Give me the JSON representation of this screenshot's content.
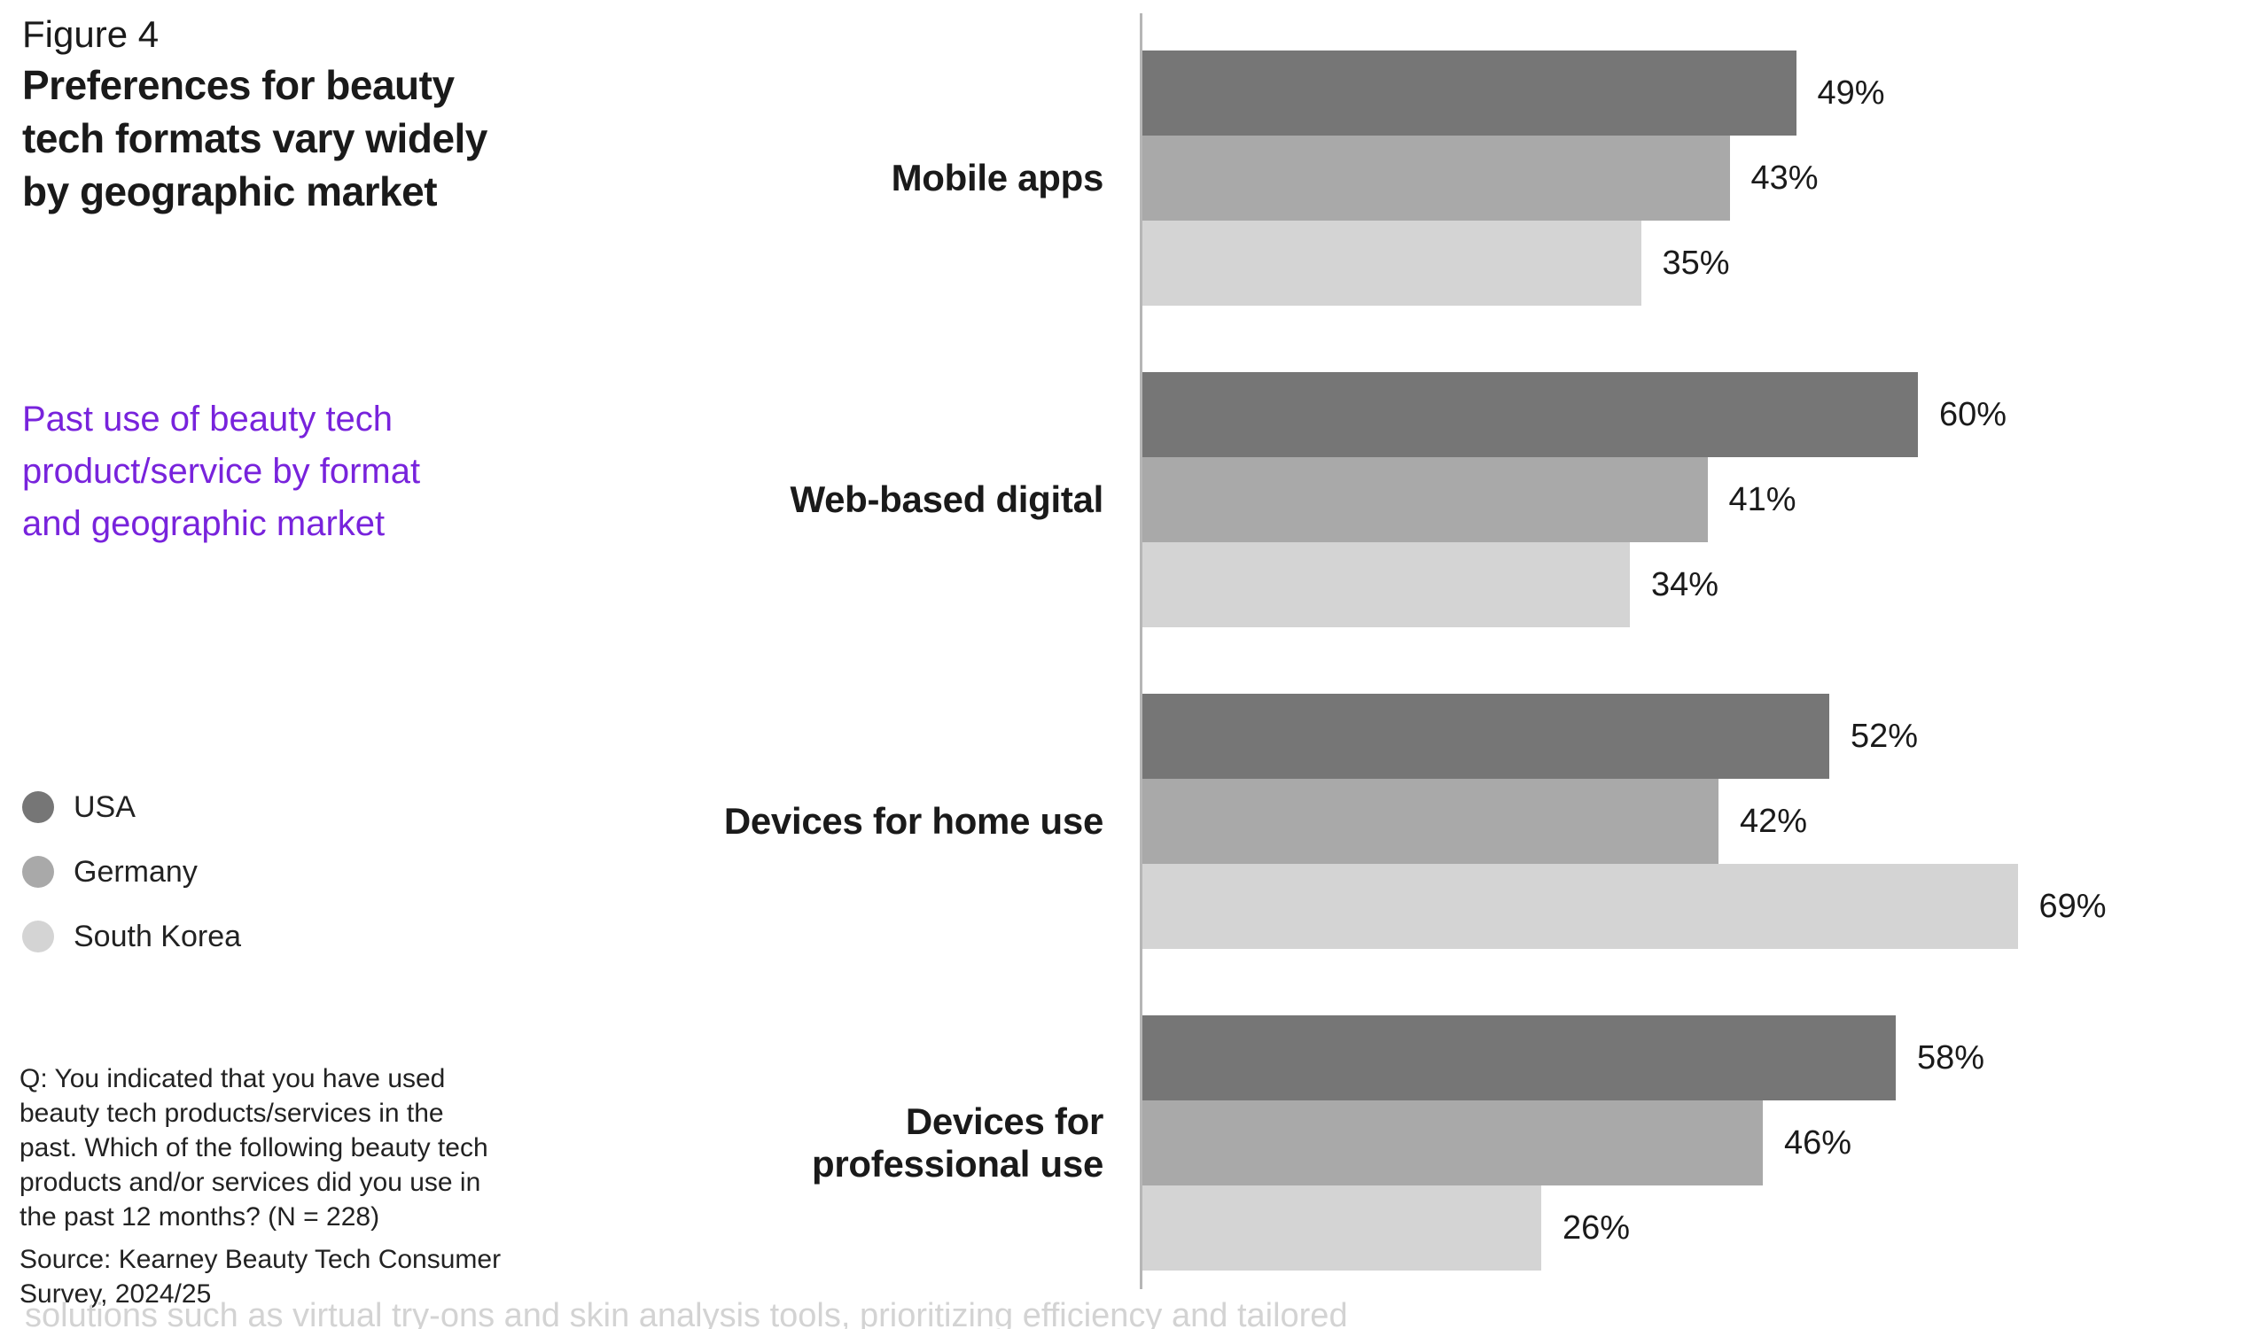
{
  "header": {
    "figure_label": "Figure 4",
    "title_lines": [
      "Preferences for beauty",
      "tech formats vary widely",
      "by geographic market"
    ],
    "subtitle_lines": [
      "Past use of beauty tech",
      "product/service by format",
      "and geographic market"
    ]
  },
  "legend": {
    "items": [
      {
        "label": "USA",
        "color": "#767676"
      },
      {
        "label": "Germany",
        "color": "#a9a9a9"
      },
      {
        "label": "South Korea",
        "color": "#d4d4d4"
      }
    ]
  },
  "footnote": {
    "question_lines": [
      "Q: You indicated that you have used",
      "beauty tech products/services in the",
      "past. Which of the following beauty tech",
      "products and/or services did you use in",
      "the past 12 months? (N = 228)"
    ],
    "source_lines": [
      "Source: Kearney Beauty Tech Consumer",
      "Survey, 2024/25"
    ]
  },
  "ghost_text": "solutions such as virtual try-ons and skin analysis tools, prioritizing efficiency and tailored",
  "colors": {
    "accent_purple": "#7823dc",
    "axis_line": "#b6b6b6",
    "text": "#1a1a1a",
    "ghost_text": "#d3d3d3"
  },
  "chart_data": {
    "type": "bar",
    "orientation": "horizontal",
    "unit": "%",
    "title": "Past use of beauty tech product/service by format and geographic market",
    "categories": [
      "Mobile apps",
      "Web-based digital",
      "Devices for home use",
      "Devices for professional use"
    ],
    "category_label_lines": [
      [
        "Mobile apps"
      ],
      [
        "Web-based digital"
      ],
      [
        "Devices for home use"
      ],
      [
        "Devices for",
        "professional use"
      ]
    ],
    "series": [
      {
        "name": "USA",
        "color": "#767676",
        "values": [
          49,
          60,
          52,
          58
        ]
      },
      {
        "name": "Germany",
        "color": "#a9a9a9",
        "values": [
          43,
          41,
          42,
          46
        ]
      },
      {
        "name": "South Korea",
        "color": "#d4d4d4",
        "values": [
          35,
          34,
          69,
          26
        ]
      }
    ],
    "value_labels": [
      [
        "49%",
        "60%",
        "52%",
        "58%"
      ],
      [
        "43%",
        "41%",
        "42%",
        "46%"
      ],
      [
        "35%",
        "34%",
        "69%",
        "26%"
      ]
    ],
    "axis": {
      "baseline_visible": true,
      "ticks": [],
      "gridlines": false
    },
    "legend_position": "left",
    "xlim": [
      0,
      100
    ]
  }
}
